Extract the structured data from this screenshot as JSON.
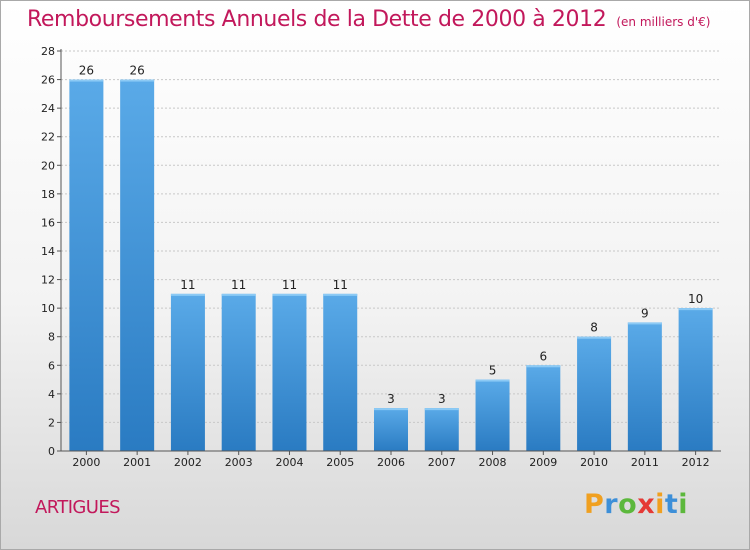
{
  "header": {
    "title": "Remboursements Annuels de la Dette de 2000 à 2012",
    "subtitle": "(en milliers d'€)"
  },
  "footer": {
    "place": "ARTIGUES",
    "logo": {
      "letters": [
        "P",
        "r",
        "o",
        "x",
        "i",
        "t",
        "i"
      ],
      "colors": [
        "#f0a020",
        "#3d8fd8",
        "#5cb83c",
        "#e53935",
        "#f0a020",
        "#3d8fd8",
        "#5cb83c"
      ]
    }
  },
  "chart_data": {
    "type": "bar",
    "title": "Remboursements Annuels de la Dette de 2000 à 2012",
    "subtitle": "(en milliers d'€)",
    "categories": [
      "2000",
      "2001",
      "2002",
      "2003",
      "2004",
      "2005",
      "2006",
      "2007",
      "2008",
      "2009",
      "2010",
      "2011",
      "2012"
    ],
    "values": [
      26,
      26,
      11,
      11,
      11,
      11,
      3,
      3,
      5,
      6,
      8,
      9,
      10
    ],
    "ylim": [
      0,
      28
    ],
    "yticks": [
      0,
      2,
      4,
      6,
      8,
      10,
      12,
      14,
      16,
      18,
      20,
      22,
      24,
      26,
      28
    ],
    "grid": true,
    "bar_color": "#4a9fe0",
    "bar_color_dark": "#2a78bf"
  }
}
